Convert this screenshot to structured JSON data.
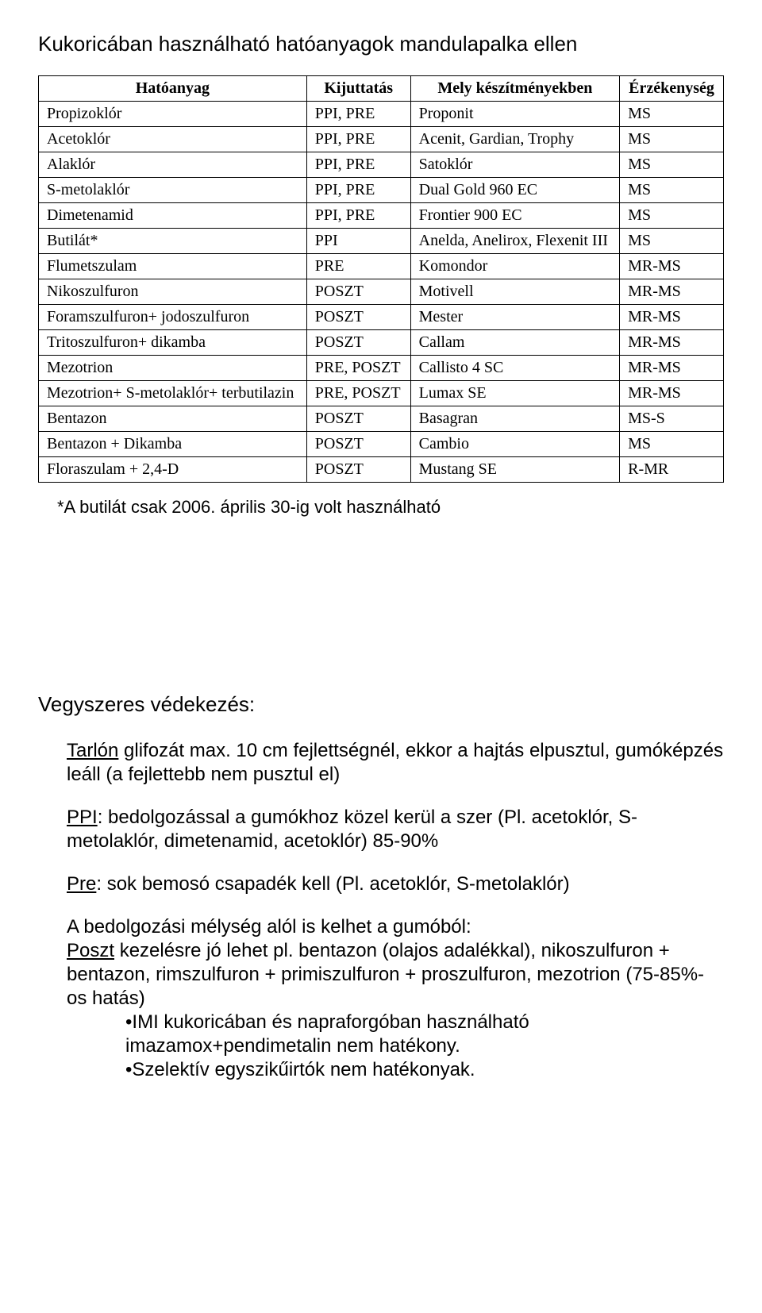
{
  "title": "Kukoricában használható hatóanyagok mandulapalka ellen",
  "table": {
    "columns": [
      "Hatóanyag",
      "Kijuttatás",
      "Mely készítményekben",
      "Érzékenység"
    ],
    "rows": [
      [
        "Propizoklór",
        "PPI, PRE",
        "Proponit",
        "MS"
      ],
      [
        "Acetoklór",
        "PPI, PRE",
        "Acenit, Gardian, Trophy",
        "MS"
      ],
      [
        "Alaklór",
        "PPI, PRE",
        "Satoklór",
        "MS"
      ],
      [
        "S-metolaklór",
        "PPI, PRE",
        "Dual Gold 960 EC",
        "MS"
      ],
      [
        "Dimetenamid",
        "PPI, PRE",
        "Frontier 900 EC",
        "MS"
      ],
      [
        "Butilát*",
        "PPI",
        "Anelda, Anelirox, Flexenit III",
        "MS"
      ],
      [
        "Flumetszulam",
        "PRE",
        "Komondor",
        "MR-MS"
      ],
      [
        "Nikoszulfuron",
        "POSZT",
        "Motivell",
        "MR-MS"
      ],
      [
        "Foramszulfuron+ jodoszulfuron",
        "POSZT",
        "Mester",
        "MR-MS"
      ],
      [
        "Tritoszulfuron+ dikamba",
        "POSZT",
        "Callam",
        "MR-MS"
      ],
      [
        "Mezotrion",
        "PRE, POSZT",
        "Callisto 4 SC",
        "MR-MS"
      ],
      [
        "Mezotrion+ S-metolaklór+ terbutilazin",
        "PRE, POSZT",
        "Lumax SE",
        "MR-MS"
      ],
      [
        "Bentazon",
        "POSZT",
        "Basagran",
        "MS-S"
      ],
      [
        "Bentazon + Dikamba",
        "POSZT",
        "Cambio",
        "MS"
      ],
      [
        "Floraszulam + 2,4-D",
        "POSZT",
        "Mustang SE",
        "R-MR"
      ]
    ]
  },
  "footnote": "*A butilát csak 2006. április 30-ig volt használható",
  "section2": {
    "heading": "Vegyszeres védekezés:",
    "p1_u": "Tarlón",
    "p1_rest": " glifozát max. 10 cm fejlettségnél, ekkor a hajtás elpusztul, gumóképzés leáll (a fejlettebb nem pusztul el)",
    "p2_u": "PPI",
    "p2_rest": ": bedolgozással a gumókhoz közel kerül a szer (Pl. acetoklór, S-metolaklór, dimetenamid, acetoklór) 85-90%",
    "p3_u": "Pre",
    "p3_rest": ": sok bemosó csapadék kell (Pl. acetoklór, S-metolaklór)",
    "p4a": "A bedolgozási mélység alól is kelhet a gumóból:",
    "p4_u": "Poszt",
    "p4_rest": " kezelésre jó lehet pl. bentazon (olajos adalékkal), nikoszulfuron + bentazon, rimszulfuron + primiszulfuron + proszulfuron, mezotrion (75-85%-os hatás)",
    "p5a": "•IMI kukoricában és napraforgóban használható imazamox+pendimetalin nem hatékony.",
    "p5b": "•Szelektív egyszikűirtók nem hatékonyak."
  }
}
